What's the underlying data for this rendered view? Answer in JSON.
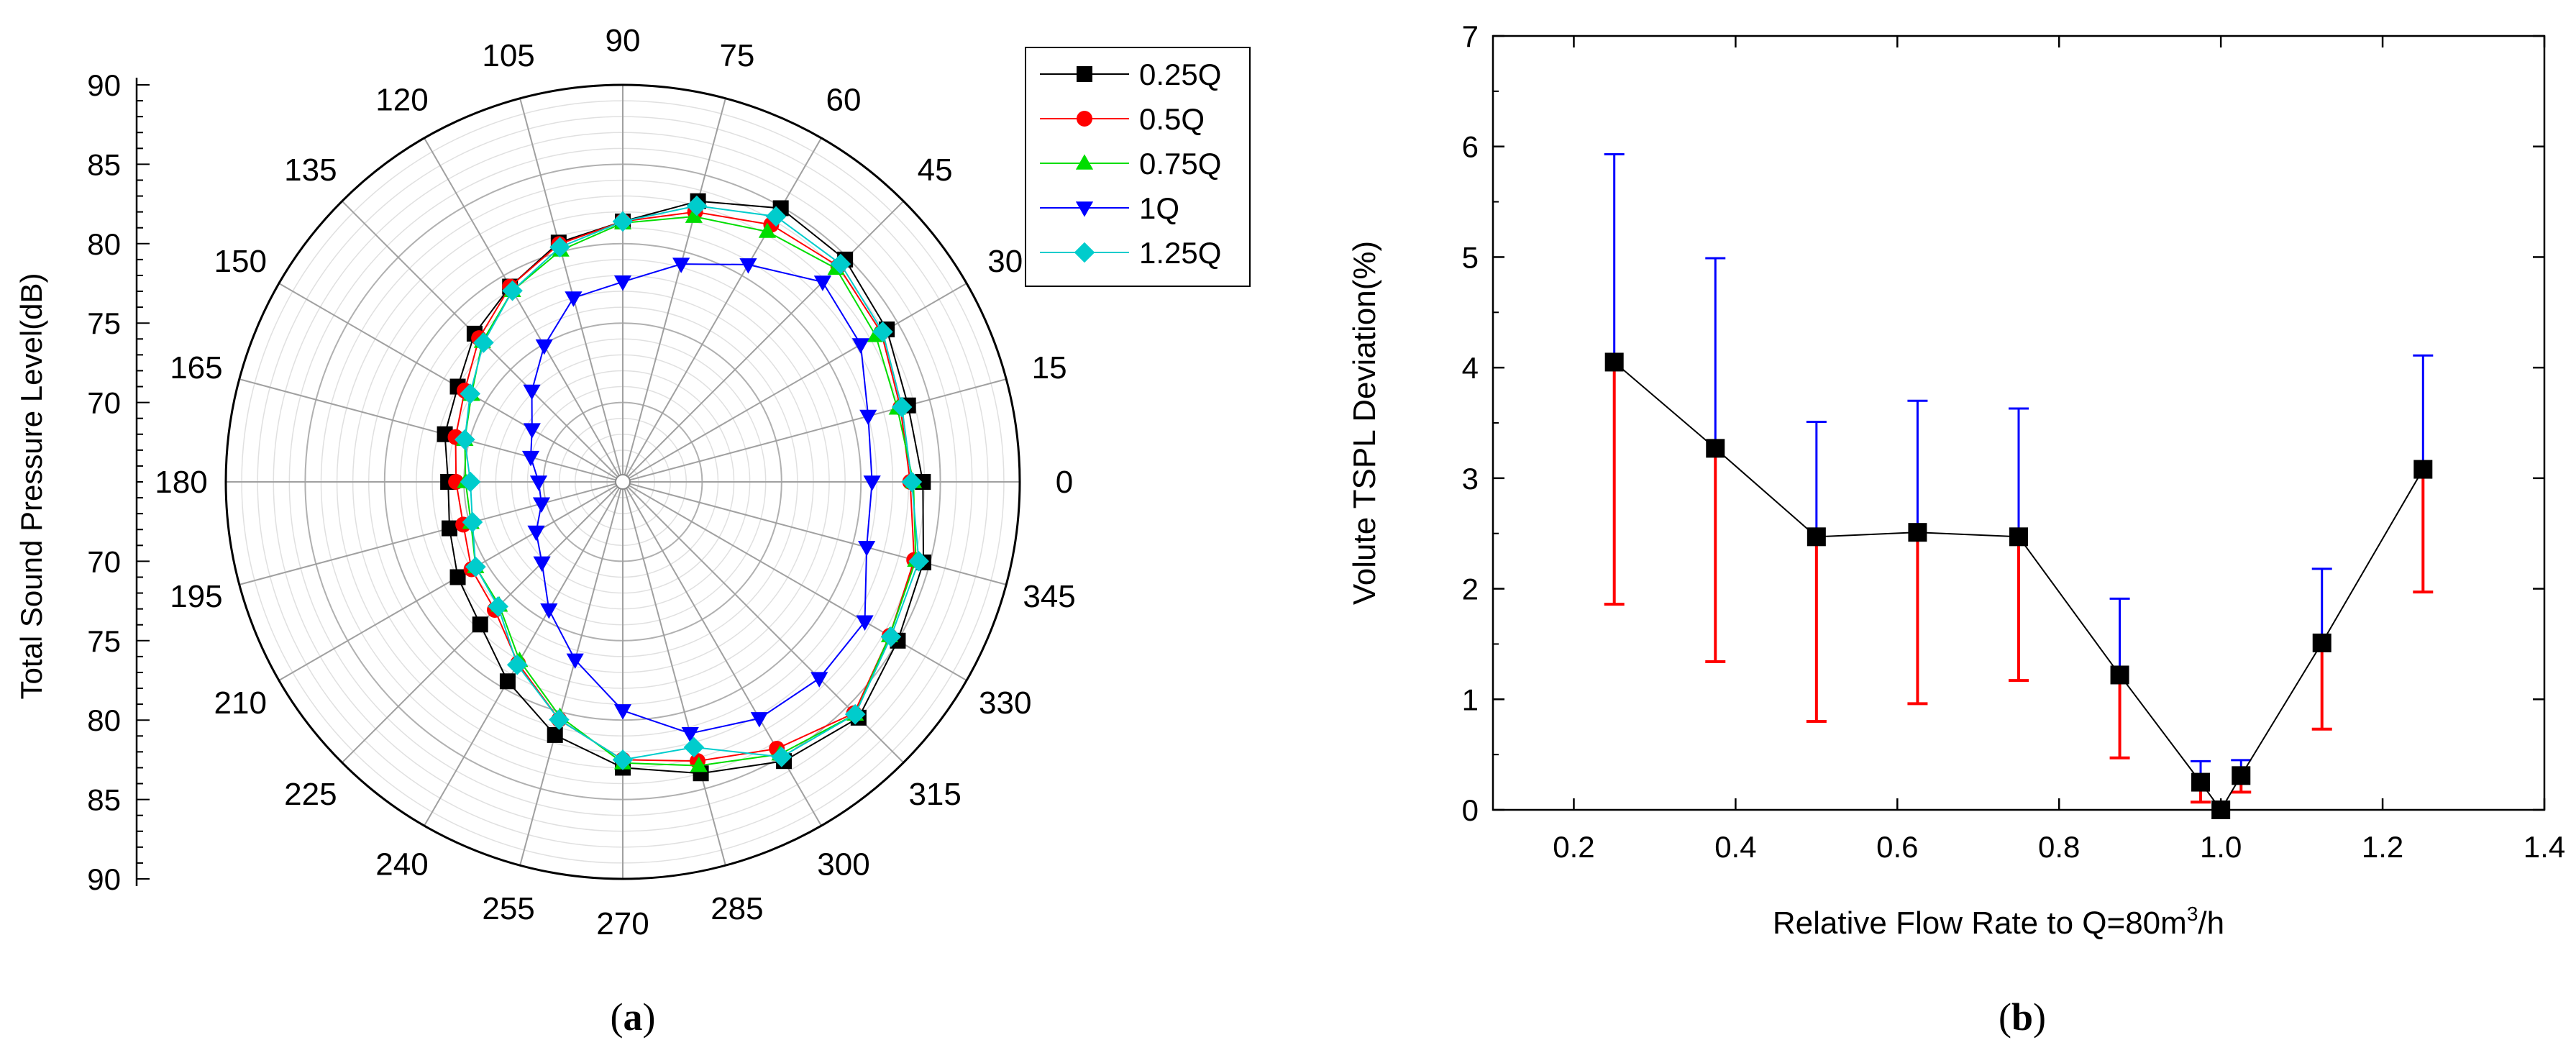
{
  "chart_data": [
    {
      "type": "polar",
      "panel_label": "(a)",
      "panel_letter": "a",
      "ylabel": "Total Sound Pressure Level(dB)",
      "rlim": [
        65,
        90
      ],
      "radial_ticks": [
        {
          "value": 90,
          "label": "90"
        },
        {
          "value": 85,
          "label": "85"
        },
        {
          "value": 80,
          "label": "80"
        },
        {
          "value": 75,
          "label": "75"
        },
        {
          "value": 70,
          "label": "70"
        }
      ],
      "angle_labels": [
        "0",
        "15",
        "30",
        "45",
        "60",
        "75",
        "90",
        "105",
        "120",
        "135",
        "150",
        "165",
        "180",
        "195",
        "210",
        "225",
        "240",
        "255",
        "270",
        "285",
        "300",
        "315",
        "330",
        "345"
      ],
      "angles": [
        0,
        15,
        30,
        45,
        60,
        75,
        90,
        105,
        120,
        135,
        150,
        165,
        180,
        195,
        210,
        225,
        240,
        255,
        270,
        285,
        300,
        315,
        330,
        345
      ],
      "legend": [
        "0.25Q",
        "0.5Q",
        "0.75Q",
        "1Q",
        "1.25Q"
      ],
      "series": [
        {
          "name": "0.25Q",
          "color": "#000000",
          "marker": "square",
          "values": [
            83.9,
            83.6,
            84.2,
            84.8,
            84.9,
            83.3,
            81.4,
            80.6,
            79.2,
            78.2,
            77.0,
            76.6,
            76.0,
            76.3,
            77.0,
            77.7,
            79.5,
            81.5,
            83.0,
            84.0,
            85.3,
            86.0,
            85.0,
            84.6
          ]
        },
        {
          "name": "0.5Q",
          "color": "#ff0000",
          "marker": "circle",
          "values": [
            83.1,
            83.1,
            83.8,
            84.2,
            83.7,
            82.6,
            81.4,
            80.5,
            79.2,
            77.8,
            76.5,
            75.9,
            75.5,
            75.4,
            76.0,
            76.4,
            78.2,
            80.5,
            82.5,
            83.2,
            84.4,
            85.6,
            84.4,
            84.0
          ]
        },
        {
          "name": "0.75Q",
          "color": "#00dd00",
          "marker": "triangle-up",
          "values": [
            83.3,
            82.9,
            83.4,
            84.0,
            83.2,
            82.3,
            81.3,
            80.1,
            78.9,
            77.5,
            76.0,
            75.3,
            74.9,
            74.9,
            75.7,
            76.0,
            78.0,
            80.3,
            82.7,
            83.5,
            84.8,
            85.7,
            84.4,
            84.1
          ]
        },
        {
          "name": "1Q",
          "color": "#0000ff",
          "marker": "triangle-down",
          "values": [
            80.7,
            81.0,
            82.3,
            82.8,
            80.8,
            79.2,
            77.6,
            77.0,
            74.9,
            73.1,
            71.6,
            71.0,
            70.3,
            70.3,
            71.3,
            72.2,
            74.3,
            76.6,
            79.4,
            81.4,
            82.2,
            82.5,
            82.6,
            80.9
          ]
        },
        {
          "name": "1.25Q",
          "color": "#00cccc",
          "marker": "diamond",
          "values": [
            83.2,
            83.2,
            83.9,
            84.4,
            84.3,
            83.0,
            81.4,
            80.3,
            78.9,
            77.4,
            76.1,
            75.3,
            74.6,
            74.8,
            75.7,
            76.1,
            78.3,
            80.5,
            82.5,
            82.3,
            85.0,
            85.7,
            84.5,
            84.3
          ]
        }
      ]
    },
    {
      "type": "line-errorbar",
      "panel_label": "(b)",
      "panel_letter": "b",
      "xlabel": "Relative Flow Rate to Q=80m",
      "xlabel_sup": "3",
      "xlabel_suffix": "/h",
      "ylabel": "Volute TSPL Deviation(%)",
      "xlim": [
        0.1,
        1.4
      ],
      "ylim": [
        0,
        7
      ],
      "xticks": [
        0.2,
        0.4,
        0.6,
        0.8,
        1.0,
        1.2,
        1.4
      ],
      "xtick_labels": [
        "0.2",
        "0.4",
        "0.6",
        "0.8",
        "1.0",
        "1.2",
        "1.4"
      ],
      "yticks": [
        0,
        1,
        2,
        3,
        4,
        5,
        6,
        7
      ],
      "ytick_labels": [
        "0",
        "1",
        "2",
        "3",
        "4",
        "5",
        "6",
        "7"
      ],
      "x": [
        0.25,
        0.375,
        0.5,
        0.625,
        0.75,
        0.875,
        0.975,
        1.0,
        1.025,
        1.125,
        1.25
      ],
      "y": [
        4.05,
        3.27,
        2.47,
        2.51,
        2.47,
        1.22,
        0.25,
        0.0,
        0.31,
        1.51,
        3.08
      ],
      "error_upper": [
        5.93,
        4.99,
        3.51,
        3.7,
        3.63,
        1.91,
        0.44,
        0.0,
        0.45,
        2.18,
        4.11
      ],
      "error_lower": [
        1.86,
        1.34,
        0.8,
        0.96,
        1.17,
        0.47,
        0.07,
        0.0,
        0.16,
        0.73,
        1.97
      ],
      "line_color": "#000000",
      "upper_error_color": "#0000ff",
      "lower_error_color": "#ff0000"
    }
  ]
}
